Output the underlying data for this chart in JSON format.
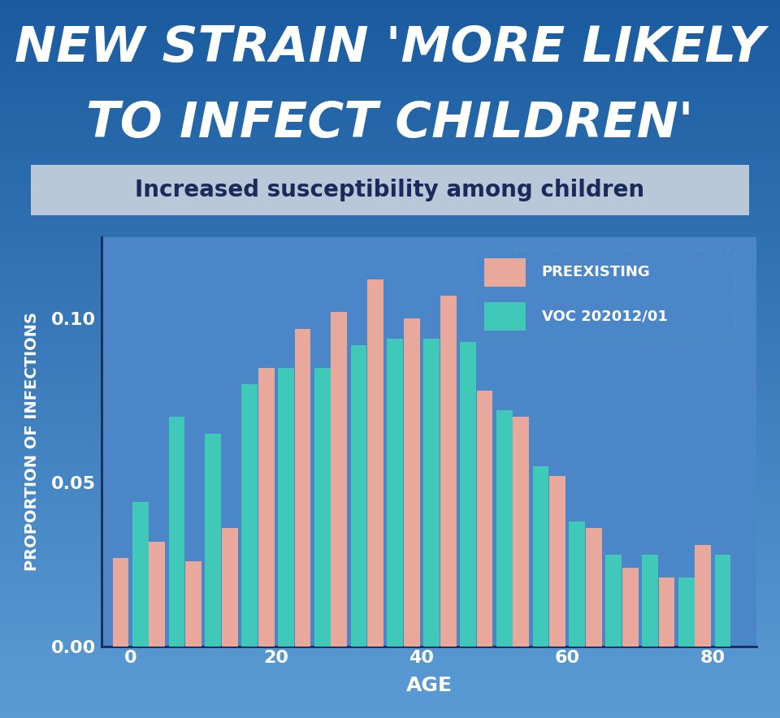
{
  "title_line1": "NEW STRAIN 'MORE LIKELY",
  "title_line2": "TO INFECT CHILDREN'",
  "subtitle": "Increased susceptibility among children",
  "xlabel": "AGE",
  "ylabel": "PROPORTION OF INFECTIONS",
  "bg_color_top": "#1a5ba0",
  "bg_color_bottom": "#5b9bd5",
  "chart_bg": "#4a86c8",
  "title_color": "#ffffff",
  "subtitle_bg": "#b8c8d8",
  "subtitle_color": "#1a2a5a",
  "axis_color": "#1a2a5a",
  "tick_color": "#ffffff",
  "label_color": "#ffffff",
  "bar_preexisting_color": "#e8a89c",
  "bar_voc_color": "#40c8b8",
  "legend_border_color": "#4a90c0",
  "legend_text_color": "#ffffff",
  "age_groups": [
    0,
    5,
    10,
    15,
    20,
    25,
    30,
    35,
    40,
    45,
    50,
    55,
    60,
    65,
    70,
    75,
    80
  ],
  "preexisting": [
    0.027,
    0.032,
    0.026,
    0.036,
    0.085,
    0.097,
    0.102,
    0.112,
    0.1,
    0.107,
    0.078,
    0.07,
    0.052,
    0.036,
    0.024,
    0.021,
    0.031
  ],
  "voc": [
    0.044,
    0.07,
    0.065,
    0.08,
    0.085,
    0.085,
    0.092,
    0.094,
    0.094,
    0.093,
    0.072,
    0.055,
    0.038,
    0.028,
    0.028,
    0.021,
    0.028
  ],
  "ylim": [
    0,
    0.125
  ],
  "yticks": [
    0.0,
    0.05,
    0.1
  ],
  "bar_width": 2.2,
  "bar_gap": 0.5
}
